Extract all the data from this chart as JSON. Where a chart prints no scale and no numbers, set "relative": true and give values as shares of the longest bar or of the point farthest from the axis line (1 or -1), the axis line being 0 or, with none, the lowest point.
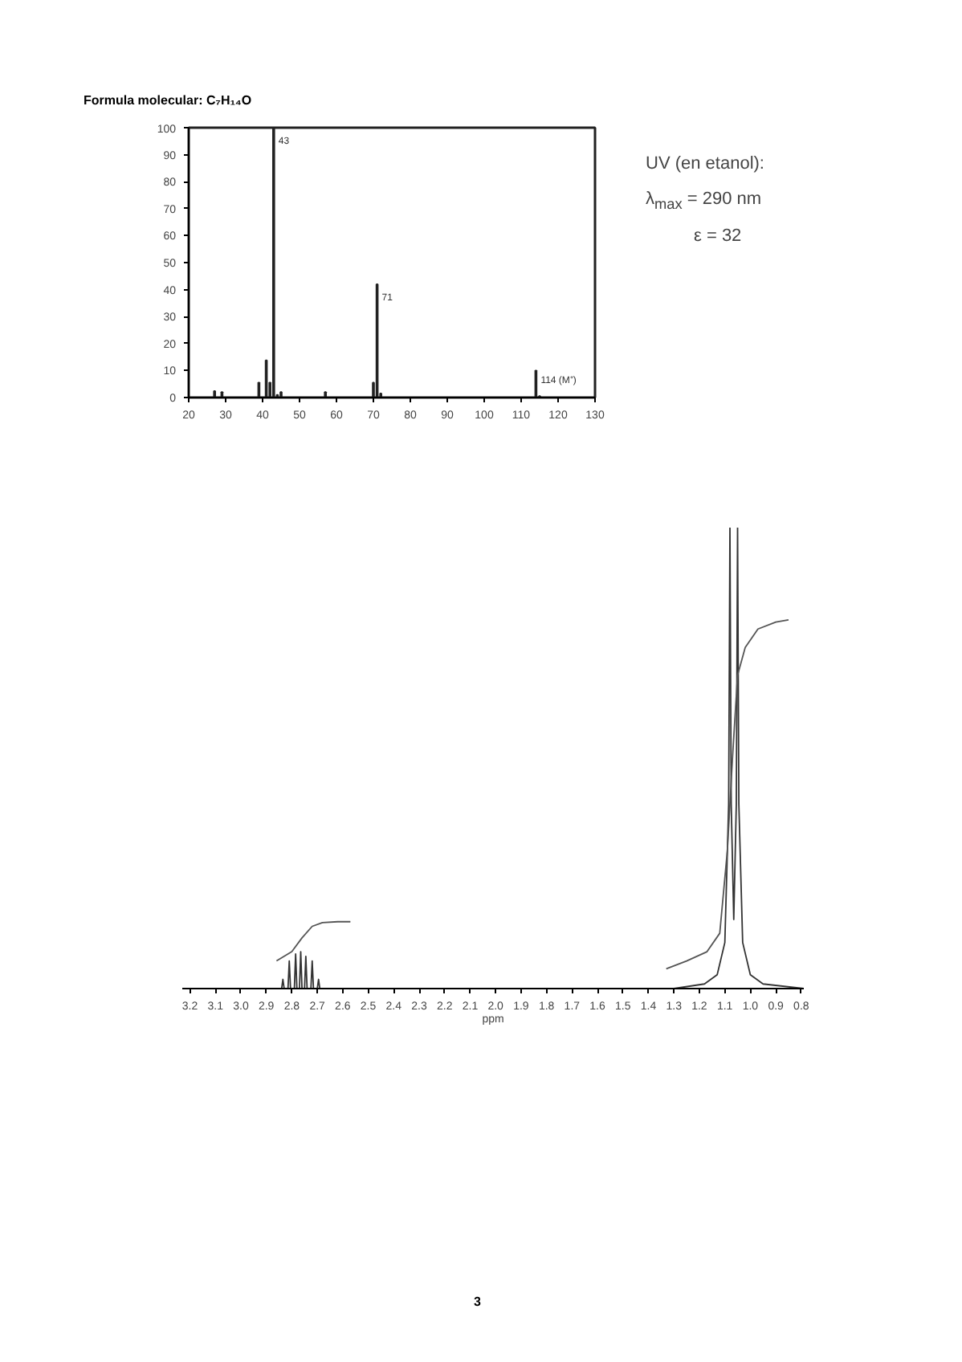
{
  "chart_data": [
    {
      "type": "bar",
      "title": "Formula molecular: C₇H₁₄O",
      "x": [
        27,
        29,
        39,
        41,
        42,
        43,
        44,
        45,
        57,
        70,
        71,
        72,
        114,
        115
      ],
      "values": [
        2.4,
        2,
        5.5,
        13.8,
        5.5,
        100,
        1,
        2,
        2,
        5.5,
        42,
        1.5,
        10,
        0.5
      ],
      "color": "#222222",
      "xlim": [
        20,
        130
      ],
      "xticks": [
        20,
        30,
        40,
        50,
        60,
        70,
        80,
        90,
        100,
        110,
        120,
        130
      ],
      "ylim": [
        0,
        100
      ],
      "yticks": [
        0,
        10,
        20,
        30,
        40,
        50,
        60,
        70,
        80,
        90,
        100
      ],
      "grid": false,
      "annotations": [
        {
          "text": "43",
          "x": 43,
          "y": 100
        },
        {
          "text": "71",
          "x": 71,
          "y": 42
        },
        {
          "text": "114 (M⁺)",
          "x": 114,
          "y": 10
        },
        "UV (en etanol):",
        "λ$_{max}$ = 290 nm",
        "ε = 32"
      ]
    },
    {
      "type": "line",
      "relative": true,
      "xlabel": "ppm",
      "series": [
        {
          "color": "#333333",
          "x": [
            3.23,
            2.84,
            2.835,
            2.83,
            2.825,
            2.815,
            2.81,
            2.805,
            2.79,
            2.785,
            2.78,
            2.77,
            2.765,
            2.76,
            2.75,
            2.745,
            2.74,
            2.725,
            2.72,
            2.715,
            2.7,
            2.695,
            2.69,
            2.68,
            1.3,
            1.18,
            1.13,
            1.1,
            1.085,
            1.08,
            1.075,
            1.065,
            1.055,
            1.05,
            1.045,
            1.03,
            1.0,
            0.95,
            0.79
          ],
          "values": [
            0,
            0,
            0.02,
            0,
            0,
            0,
            0.06,
            0,
            0,
            0.075,
            0,
            0,
            0.08,
            0,
            0,
            0.07,
            0,
            0,
            0.06,
            0,
            0,
            0.02,
            0,
            0,
            0,
            0.01,
            0.03,
            0.1,
            0.4,
            1,
            0.4,
            0.15,
            0.4,
            1,
            0.4,
            0.1,
            0.03,
            0.01,
            0
          ]
        },
        {
          "color": "#555555",
          "x": [
            2.86,
            2.8,
            2.76,
            2.72,
            2.68,
            2.62,
            2.57,
            2.0,
            1.33,
            1.25,
            1.17,
            1.12,
            1.09,
            1.07,
            1.05,
            1.02,
            0.97,
            0.9,
            0.85
          ],
          "values": [
            0.06,
            0.08,
            0.11,
            0.135,
            0.143,
            0.145,
            0.145,
            null,
            0.043,
            0.06,
            0.08,
            0.12,
            0.3,
            0.5,
            0.68,
            0.74,
            0.78,
            0.795,
            0.8
          ]
        }
      ],
      "xlim": [
        3.23,
        0.79
      ],
      "xticks": [
        3.2,
        3.1,
        {
          "value": 3.0,
          "label": "3.0"
        },
        2.9,
        2.8,
        2.7,
        2.6,
        2.5,
        2.4,
        2.3,
        2.2,
        2.1,
        {
          "value": 2.0,
          "label": "2.0"
        },
        1.9,
        1.8,
        1.7,
        1.6,
        1.5,
        1.4,
        1.3,
        1.2,
        1.1,
        {
          "value": 1.0,
          "label": "1.0"
        },
        0.9,
        0.8
      ],
      "grid": false,
      "annotations": [
        "3"
      ]
    }
  ]
}
